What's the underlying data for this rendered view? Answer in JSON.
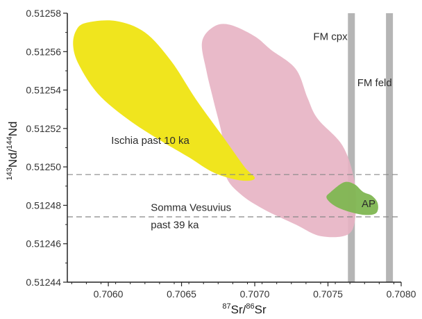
{
  "chart_data": {
    "type": "scatter",
    "xlim": [
      0.70572,
      0.708
    ],
    "ylim": [
      0.51244,
      0.51258
    ],
    "x_ticks": [
      {
        "value": 0.706,
        "label": "0.7060"
      },
      {
        "value": 0.7065,
        "label": "0.7065"
      },
      {
        "value": 0.707,
        "label": "0.7070"
      },
      {
        "value": 0.7075,
        "label": "0.7075"
      },
      {
        "value": 0.708,
        "label": "0.7080"
      }
    ],
    "y_ticks": [
      {
        "value": 0.51244,
        "label": "0.51244"
      },
      {
        "value": 0.51246,
        "label": "0.51246"
      },
      {
        "value": 0.51248,
        "label": "0.51248"
      },
      {
        "value": 0.5125,
        "label": "0.51250"
      },
      {
        "value": 0.51252,
        "label": "0.51252"
      },
      {
        "value": 0.51254,
        "label": "0.51254"
      },
      {
        "value": 0.51256,
        "label": "0.51256"
      },
      {
        "value": 0.51258,
        "label": "0.51258"
      }
    ],
    "xlabel": {
      "sup1": "87",
      "base1": "Sr/",
      "sup2": "86",
      "base2": "Sr"
    },
    "ylabel": {
      "sup1": "143",
      "base1": "Nd/",
      "sup2": "144",
      "base2": "Nd"
    },
    "fields": [
      {
        "name": "Ischia past 10 ka",
        "color": "#f0e51e",
        "outline": [
          [
            0.70578,
            0.512571
          ],
          [
            0.70585,
            0.512575
          ],
          [
            0.70605,
            0.512576
          ],
          [
            0.70625,
            0.51257
          ],
          [
            0.70643,
            0.512555
          ],
          [
            0.7066,
            0.512535
          ],
          [
            0.70679,
            0.512515
          ],
          [
            0.70693,
            0.5125
          ],
          [
            0.707,
            0.512494
          ],
          [
            0.7069,
            0.512493
          ],
          [
            0.70672,
            0.512497
          ],
          [
            0.70655,
            0.512505
          ],
          [
            0.70635,
            0.512514
          ],
          [
            0.70613,
            0.512525
          ],
          [
            0.70593,
            0.512538
          ],
          [
            0.7058,
            0.512553
          ],
          [
            0.70576,
            0.512563
          ]
        ]
      },
      {
        "name": "Somma Vesuvius past 39 ka",
        "color": "#e7b3c3",
        "outline": [
          [
            0.70664,
            0.512565
          ],
          [
            0.70672,
            0.512573
          ],
          [
            0.70683,
            0.512574
          ],
          [
            0.707,
            0.512568
          ],
          [
            0.70711,
            0.512561
          ],
          [
            0.70728,
            0.512551
          ],
          [
            0.70736,
            0.512536
          ],
          [
            0.70743,
            0.512525
          ],
          [
            0.7076,
            0.512511
          ],
          [
            0.70768,
            0.512493
          ],
          [
            0.70769,
            0.512476
          ],
          [
            0.70764,
            0.512465
          ],
          [
            0.70745,
            0.512464
          ],
          [
            0.70728,
            0.51247
          ],
          [
            0.70706,
            0.512478
          ],
          [
            0.7069,
            0.512486
          ],
          [
            0.7068,
            0.512496
          ],
          [
            0.70678,
            0.512515
          ],
          [
            0.70672,
            0.512534
          ],
          [
            0.70667,
            0.51255
          ]
        ]
      },
      {
        "name": "AP",
        "color": "#7fb652",
        "outline": [
          [
            0.70752,
            0.512487
          ],
          [
            0.70761,
            0.512492
          ],
          [
            0.70768,
            0.512491
          ],
          [
            0.70774,
            0.512487
          ],
          [
            0.7078,
            0.512485
          ],
          [
            0.70784,
            0.512481
          ],
          [
            0.70783,
            0.512476
          ],
          [
            0.70775,
            0.512475
          ],
          [
            0.70763,
            0.512477
          ],
          [
            0.70754,
            0.51248
          ],
          [
            0.70749,
            0.512484
          ]
        ]
      }
    ],
    "vertical_bands": [
      {
        "name": "FM cpx",
        "x": 0.70766,
        "color": "#b5b5b5"
      },
      {
        "name": "FM feld",
        "x": 0.70792,
        "color": "#b5b5b5"
      }
    ],
    "horizontal_dashed_lines": [
      {
        "y": 0.512496,
        "color": "#888888"
      },
      {
        "y": 0.512474,
        "color": "#888888"
      }
    ],
    "annotations": [
      {
        "text": "Ischia past 10 ka",
        "x": 0.70602,
        "y": 0.512512
      },
      {
        "text": "Somma Vesuvius",
        "x": 0.70629,
        "y": 0.512477
      },
      {
        "text": "past 39 ka",
        "x": 0.70629,
        "y": 0.512468
      },
      {
        "text": "FM cpx",
        "x": 0.7074,
        "y": 0.512566
      },
      {
        "text": "FM feld",
        "x": 0.7077,
        "y": 0.512542
      },
      {
        "text": "AP",
        "x": 0.70773,
        "y": 0.512479
      }
    ]
  }
}
